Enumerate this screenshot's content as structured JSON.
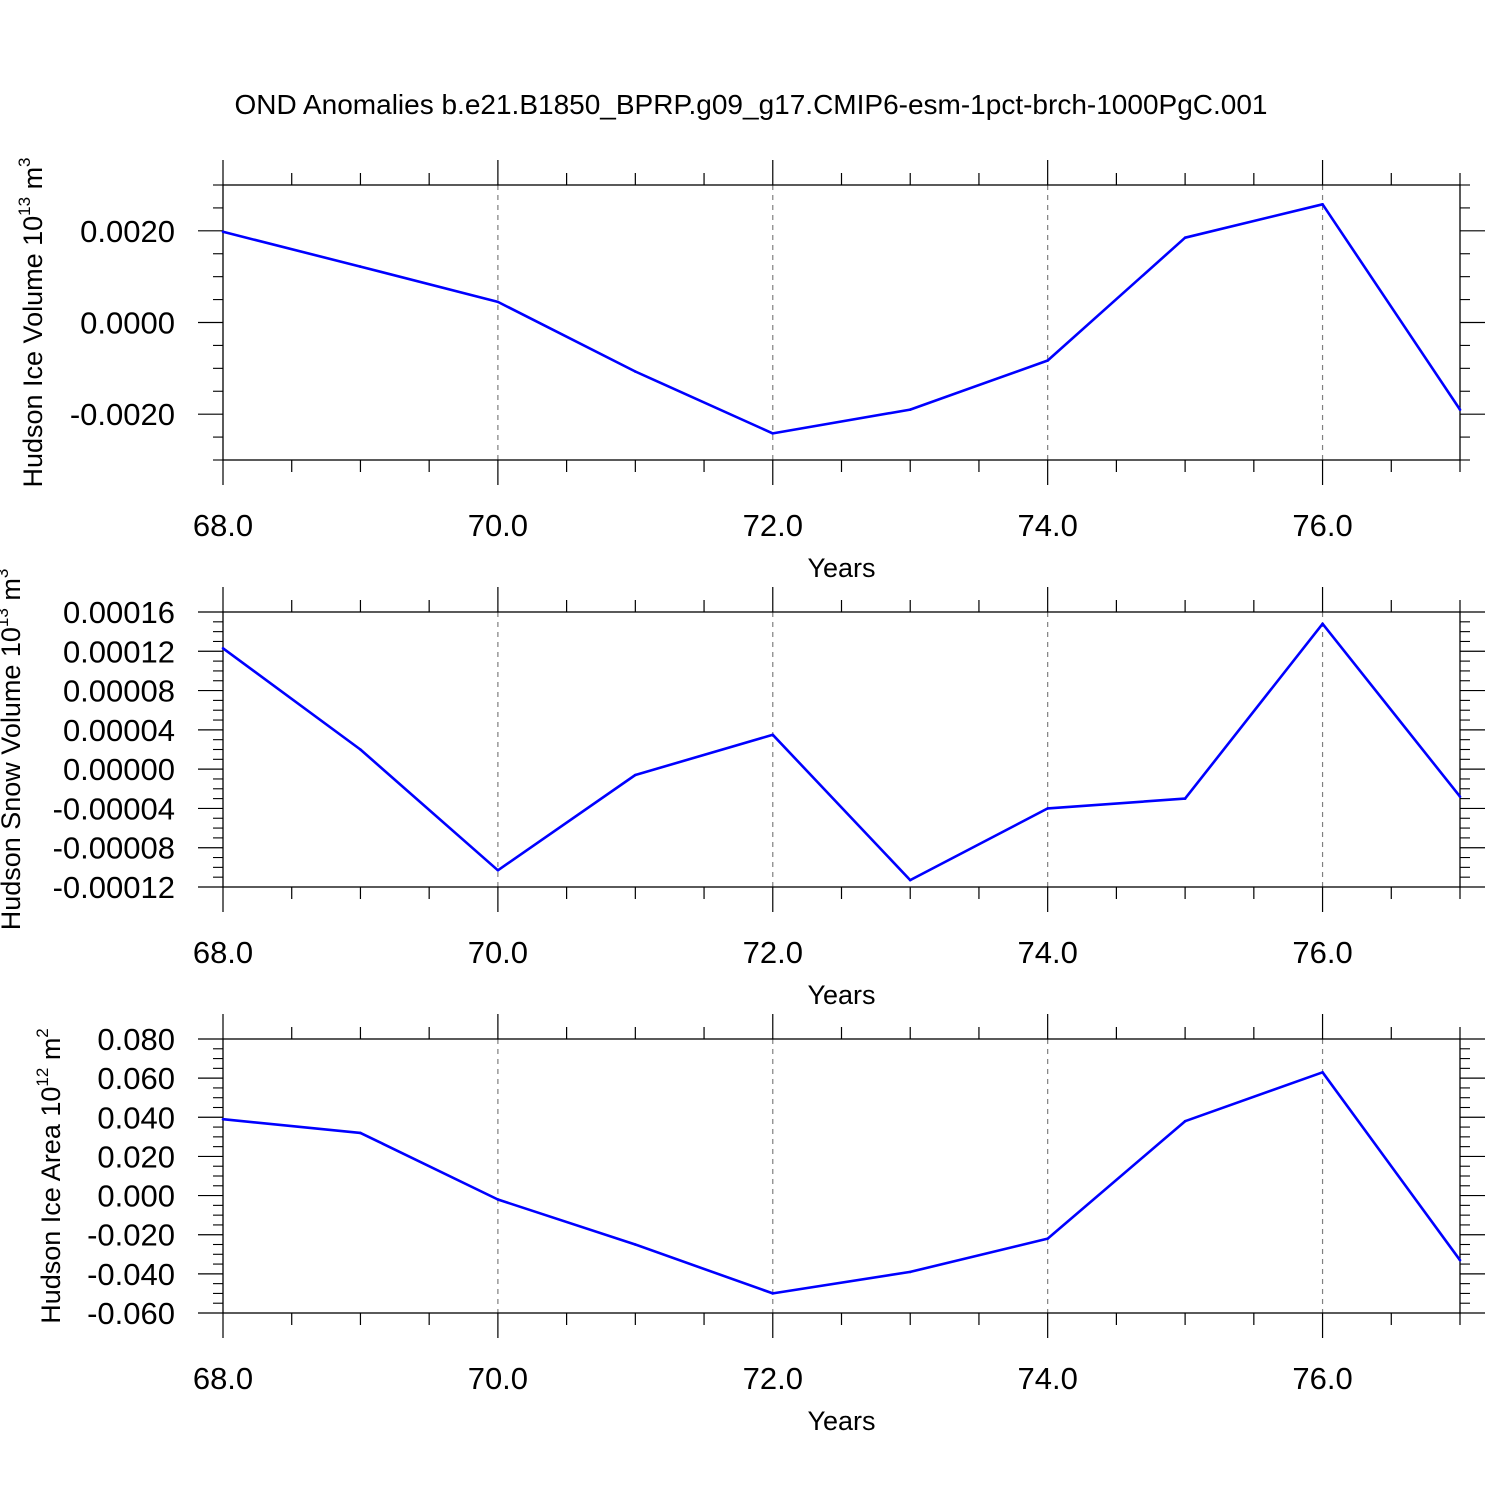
{
  "title": "OND Anomalies b.e21.B1850_BPRP.g09_g17.CMIP6-esm-1pct-brch-1000PgC.001",
  "colors": {
    "line": "#0000ff",
    "axis": "#000000",
    "grid": "#808080",
    "background": "#ffffff"
  },
  "chart_data": [
    {
      "type": "line",
      "xlabel": "Years",
      "ylabel_main": "Hudson Ice Volume 10",
      "ylabel_exp": "13",
      "ylabel_unit": " m",
      "ylabel_unit_exp": "3",
      "xlim": [
        68,
        77
      ],
      "ylim": [
        -0.003,
        0.003
      ],
      "grid": "vertical dashed at major x ticks",
      "x_ticks": [
        68,
        70,
        72,
        74,
        76
      ],
      "x_tick_labels": [
        "68.0",
        "70.0",
        "72.0",
        "74.0",
        "76.0"
      ],
      "y_ticks": [
        -0.002,
        0.0,
        0.002
      ],
      "y_tick_labels": [
        "-0.0020",
        "0.0000",
        "0.0020"
      ],
      "y_minor_step": 0.0005,
      "series": [
        {
          "x": [
            68,
            69,
            70,
            71,
            72,
            73,
            74,
            75,
            76,
            77
          ],
          "values": [
            0.00198,
            0.00122,
            0.00045,
            -0.00107,
            -0.00242,
            -0.0019,
            -0.00083,
            0.00185,
            0.00258,
            -0.0019
          ]
        }
      ]
    },
    {
      "type": "line",
      "xlabel": "Years",
      "ylabel_main": "Hudson Snow Volume 10",
      "ylabel_exp": "13",
      "ylabel_unit": " m",
      "ylabel_unit_exp": "3",
      "xlim": [
        68,
        77
      ],
      "ylim": [
        -0.00012,
        0.00016
      ],
      "grid": "vertical dashed at major x ticks",
      "x_ticks": [
        68,
        70,
        72,
        74,
        76
      ],
      "x_tick_labels": [
        "68.0",
        "70.0",
        "72.0",
        "74.0",
        "76.0"
      ],
      "y_ticks": [
        -0.00012,
        -8e-05,
        -4e-05,
        0.0,
        4e-05,
        8e-05,
        0.00012,
        0.00016
      ],
      "y_tick_labels": [
        "-0.00012",
        "-0.00008",
        "-0.00004",
        "0.00000",
        "0.00004",
        "0.00008",
        "0.00012",
        "0.00016"
      ],
      "y_minor_step": 1e-05,
      "series": [
        {
          "x": [
            68,
            69,
            70,
            71,
            72,
            73,
            74,
            75,
            76,
            77
          ],
          "values": [
            0.000123,
            2e-05,
            -0.000103,
            -6e-06,
            3.5e-05,
            -0.000113,
            -4e-05,
            -3e-05,
            0.000148,
            -2.8e-05
          ]
        }
      ]
    },
    {
      "type": "line",
      "xlabel": "Years",
      "ylabel_main": "Hudson Ice Area 10",
      "ylabel_exp": "12",
      "ylabel_unit": " m",
      "ylabel_unit_exp": "2",
      "xlim": [
        68,
        77
      ],
      "ylim": [
        -0.06,
        0.08
      ],
      "grid": "vertical dashed at major x ticks",
      "x_ticks": [
        68,
        70,
        72,
        74,
        76
      ],
      "x_tick_labels": [
        "68.0",
        "70.0",
        "72.0",
        "74.0",
        "76.0"
      ],
      "y_ticks": [
        -0.06,
        -0.04,
        -0.02,
        0.0,
        0.02,
        0.04,
        0.06,
        0.08
      ],
      "y_tick_labels": [
        "-0.060",
        "-0.040",
        "-0.020",
        "0.000",
        "0.020",
        "0.040",
        "0.060",
        "0.080"
      ],
      "y_minor_step": 0.005,
      "series": [
        {
          "x": [
            68,
            69,
            70,
            71,
            72,
            73,
            74,
            75,
            76,
            77
          ],
          "values": [
            0.039,
            0.032,
            -0.002,
            -0.025,
            -0.05,
            -0.039,
            -0.022,
            0.038,
            0.063,
            -0.033
          ]
        }
      ]
    }
  ]
}
